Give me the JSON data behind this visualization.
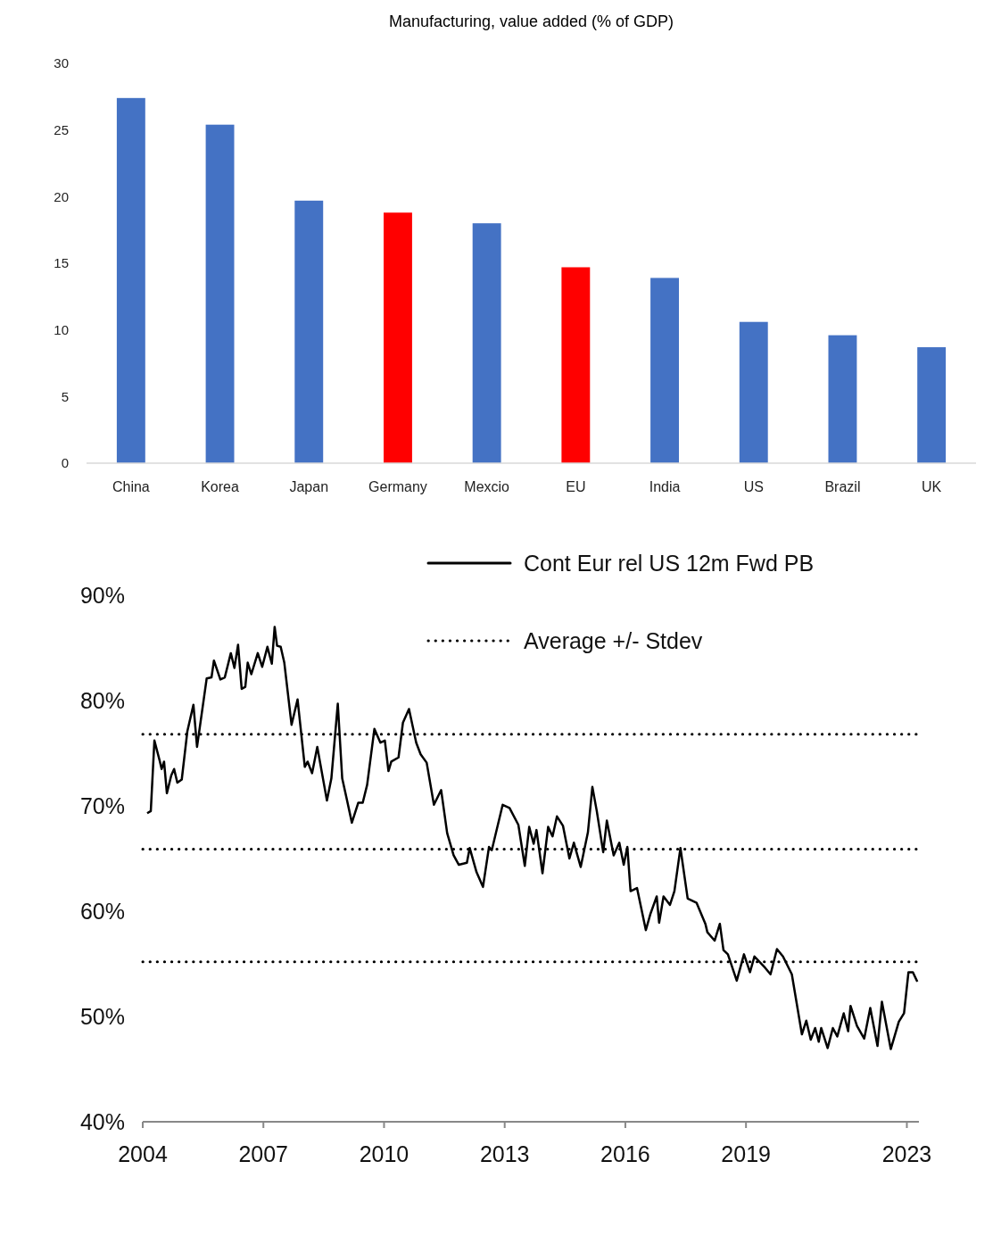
{
  "chart_data": [
    {
      "type": "bar",
      "title": "Manufacturing, value added (% of GDP)",
      "categories": [
        "China",
        "Korea",
        "Japan",
        "Germany",
        "Mexcio",
        "EU",
        "India",
        "US",
        "Brazil",
        "UK"
      ],
      "values": [
        27.4,
        25.4,
        19.7,
        18.8,
        18.0,
        14.7,
        13.9,
        10.6,
        9.6,
        8.7
      ],
      "colors": [
        "#4472c4",
        "#4472c4",
        "#4472c4",
        "#ff0000",
        "#4472c4",
        "#ff0000",
        "#4472c4",
        "#4472c4",
        "#4472c4",
        "#4472c4"
      ],
      "ylim": [
        0,
        30
      ],
      "yticks": [
        0,
        5,
        10,
        15,
        20,
        25,
        30
      ]
    },
    {
      "type": "line",
      "legend": "top",
      "xlim": [
        2004,
        2023.3
      ],
      "xticks": [
        2004,
        2007,
        2010,
        2013,
        2016,
        2019,
        2023
      ],
      "ylim": [
        40,
        90
      ],
      "yticks": [
        {
          "value": 40,
          "label": "40%"
        },
        {
          "value": 50,
          "label": "50%"
        },
        {
          "value": 60,
          "label": "60%"
        },
        {
          "value": 70,
          "label": "70%"
        },
        {
          "value": 80,
          "label": "80%"
        },
        {
          "value": 90,
          "label": "90%"
        }
      ],
      "series": [
        {
          "name": "Cont Eur rel US 12m Fwd PB",
          "color": "#000000",
          "line_style": "solid",
          "x": [
            2004.11,
            2004.2,
            2004.29,
            2004.42,
            2004.47,
            2004.53,
            2004.6,
            2004.71,
            2004.78,
            2004.86,
            2004.97,
            2005.11,
            2005.26,
            2005.35,
            2005.59,
            2005.71,
            2005.77,
            2005.93,
            2006.04,
            2006.19,
            2006.28,
            2006.37,
            2006.46,
            2006.55,
            2006.61,
            2006.7,
            2006.86,
            2006.97,
            2007.1,
            2007.21,
            2007.28,
            2007.34,
            2007.43,
            2007.52,
            2007.7,
            2007.85,
            2008.03,
            2008.1,
            2008.21,
            2008.34,
            2008.58,
            2008.69,
            2008.85,
            2008.96,
            2009.07,
            2009.2,
            2009.36,
            2009.47,
            2009.58,
            2009.76,
            2009.91,
            2010.02,
            2010.11,
            2010.18,
            2010.36,
            2010.47,
            2010.62,
            2010.8,
            2010.91,
            2011.06,
            2011.24,
            2011.42,
            2011.57,
            2011.73,
            2011.86,
            2012.06,
            2012.13,
            2012.3,
            2012.46,
            2012.61,
            2012.68,
            2012.95,
            2013.12,
            2013.34,
            2013.5,
            2013.61,
            2013.72,
            2013.79,
            2013.94,
            2014.08,
            2014.19,
            2014.3,
            2014.45,
            2014.61,
            2014.72,
            2014.89,
            2015.07,
            2015.18,
            2015.29,
            2015.45,
            2015.54,
            2015.71,
            2015.85,
            2015.96,
            2016.05,
            2016.13,
            2016.29,
            2016.51,
            2016.62,
            2016.78,
            2016.84,
            2016.95,
            2017.11,
            2017.22,
            2017.37,
            2017.55,
            2017.77,
            2017.99,
            2018.04,
            2018.22,
            2018.35,
            2018.44,
            2018.55,
            2018.77,
            2018.95,
            2019.1,
            2019.21,
            2019.48,
            2019.61,
            2019.77,
            2019.92,
            2020.14,
            2020.39,
            2020.5,
            2020.61,
            2020.72,
            2020.81,
            2020.87,
            2021.03,
            2021.16,
            2021.27,
            2021.43,
            2021.54,
            2021.6,
            2021.76,
            2021.94,
            2022.09,
            2022.27,
            2022.38,
            2022.6,
            2022.8,
            2022.93,
            2023.04,
            2023.15,
            2023.26
          ],
          "values": [
            69.3,
            69.5,
            76.2,
            74.3,
            73.5,
            74.2,
            71.2,
            72.9,
            73.5,
            72.2,
            72.5,
            77.1,
            79.6,
            75.6,
            82.1,
            82.2,
            83.8,
            82.0,
            82.2,
            84.5,
            83.1,
            85.3,
            81.1,
            81.3,
            83.6,
            82.5,
            84.5,
            83.2,
            85.1,
            83.5,
            87.0,
            85.2,
            85.1,
            83.6,
            77.7,
            80.1,
            73.7,
            74.2,
            73.1,
            75.6,
            70.5,
            72.6,
            79.7,
            72.6,
            70.7,
            68.4,
            70.3,
            70.3,
            72.0,
            77.3,
            76.0,
            76.2,
            73.3,
            74.2,
            74.6,
            77.9,
            79.2,
            76.0,
            74.9,
            74.1,
            70.1,
            71.5,
            67.4,
            65.3,
            64.4,
            64.6,
            66.0,
            63.7,
            62.3,
            66.1,
            65.8,
            70.1,
            69.8,
            68.2,
            64.3,
            68.0,
            66.4,
            67.7,
            63.6,
            68.0,
            67.1,
            69.0,
            68.1,
            65.0,
            66.5,
            64.2,
            67.5,
            71.8,
            69.5,
            65.6,
            68.6,
            65.3,
            66.5,
            64.4,
            66.1,
            61.9,
            62.2,
            58.2,
            59.7,
            61.4,
            58.9,
            61.4,
            60.6,
            61.9,
            66.0,
            61.2,
            60.8,
            58.8,
            58.0,
            57.2,
            58.8,
            56.3,
            55.9,
            53.4,
            55.9,
            54.2,
            55.7,
            54.6,
            54.0,
            56.4,
            55.7,
            54.0,
            48.3,
            49.6,
            47.8,
            48.9,
            47.6,
            48.9,
            47.0,
            48.9,
            48.1,
            50.3,
            48.6,
            51.0,
            49.1,
            47.9,
            50.8,
            47.2,
            51.4,
            46.9,
            49.5,
            50.3,
            54.2,
            54.2,
            53.3
          ]
        }
      ],
      "ref_lines": [
        {
          "axis": "y",
          "value": 76.8,
          "line_style": "dotted",
          "color": "#000000"
        },
        {
          "axis": "y",
          "value": 65.9,
          "line_style": "dotted",
          "color": "#000000",
          "label": "Average +/- Stdev"
        },
        {
          "axis": "y",
          "value": 55.2,
          "line_style": "dotted",
          "color": "#000000"
        }
      ]
    }
  ]
}
